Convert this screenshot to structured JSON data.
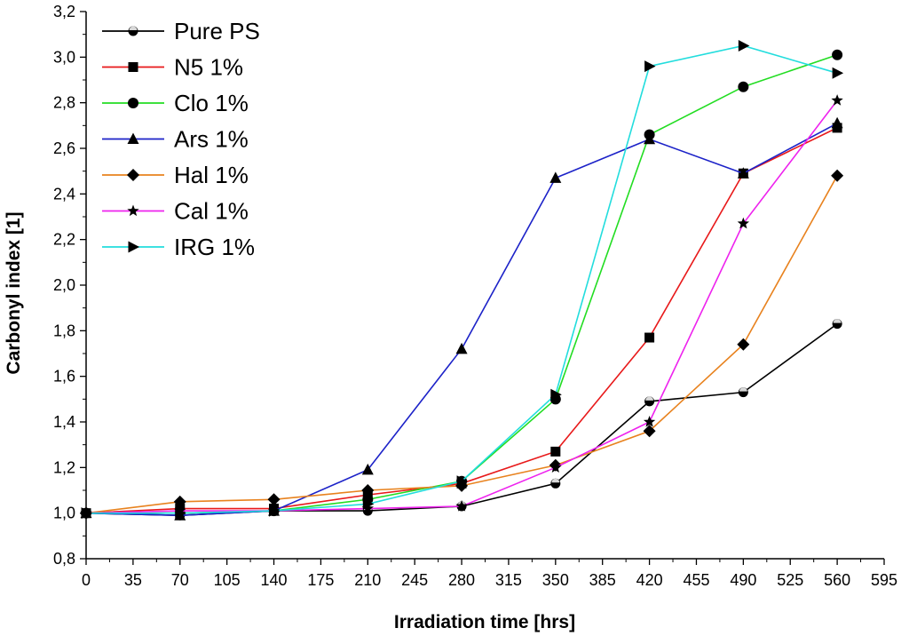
{
  "chart_data": {
    "type": "line",
    "title": "",
    "xlabel": "Irradiation time [hrs]",
    "ylabel": "Carbonyl index [1]",
    "xlim": [
      0,
      595
    ],
    "ylim": [
      0.8,
      3.2
    ],
    "xticks": [
      0,
      35,
      70,
      105,
      140,
      175,
      210,
      245,
      280,
      315,
      350,
      385,
      420,
      455,
      490,
      525,
      560,
      595
    ],
    "yticks": [
      0.8,
      1.0,
      1.2,
      1.4,
      1.6,
      1.8,
      2.0,
      2.2,
      2.4,
      2.6,
      2.8,
      3.0,
      3.2
    ],
    "decimal_separator": ",",
    "grid": false,
    "legend_position": "top-left",
    "x": [
      0,
      70,
      140,
      210,
      280,
      350,
      420,
      490,
      560
    ],
    "series": [
      {
        "name": "Pure PS",
        "color": "#000000",
        "marker": "half-circle",
        "values": [
          1.0,
          0.99,
          1.01,
          1.01,
          1.03,
          1.13,
          1.49,
          1.53,
          1.83
        ]
      },
      {
        "name": "N5 1%",
        "color": "#e8191a",
        "marker": "square",
        "values": [
          1.0,
          1.02,
          1.02,
          1.08,
          1.13,
          1.27,
          1.77,
          2.49,
          2.69
        ]
      },
      {
        "name": "Clo 1%",
        "color": "#22dd22",
        "marker": "circle",
        "values": [
          1.0,
          1.0,
          1.01,
          1.06,
          1.14,
          1.5,
          2.66,
          2.87,
          3.01
        ]
      },
      {
        "name": "Ars 1%",
        "color": "#1c22c8",
        "marker": "triangle",
        "values": [
          1.0,
          0.99,
          1.01,
          1.19,
          1.72,
          2.47,
          2.64,
          2.49,
          2.71
        ]
      },
      {
        "name": "Hal 1%",
        "color": "#e8821e",
        "marker": "diamond",
        "values": [
          1.0,
          1.05,
          1.06,
          1.1,
          1.12,
          1.21,
          1.36,
          1.74,
          2.48
        ]
      },
      {
        "name": "Cal 1%",
        "color": "#ee22ee",
        "marker": "star",
        "values": [
          1.0,
          1.01,
          1.01,
          1.02,
          1.03,
          1.2,
          1.4,
          2.27,
          2.81
        ]
      },
      {
        "name": "IRG 1%",
        "color": "#22dddd",
        "marker": "triangle-right",
        "values": [
          1.0,
          1.0,
          1.01,
          1.04,
          1.14,
          1.52,
          2.96,
          3.05,
          2.93
        ]
      }
    ]
  }
}
